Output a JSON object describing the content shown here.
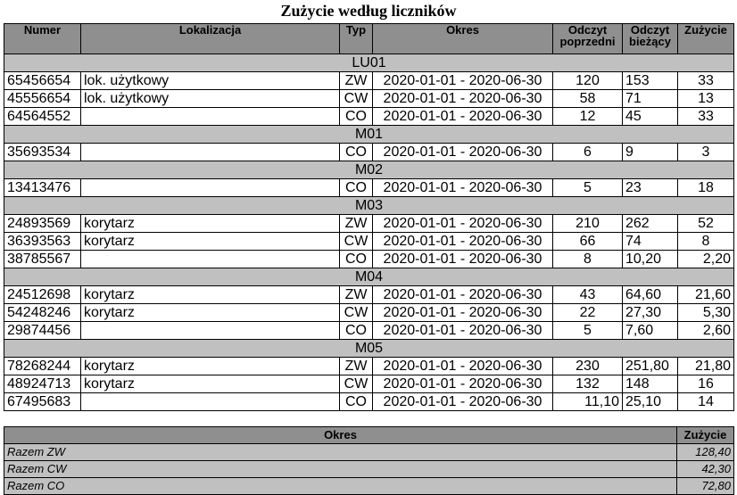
{
  "title": "Zużycie według liczników",
  "headers": {
    "numer": "Numer",
    "lokalizacja": "Lokalizacja",
    "typ": "Typ",
    "okres": "Okres",
    "odczyt_poprzedni": "Odczyt poprzedni",
    "odczyt_biezacy": "Odczyt bieżący",
    "zuzycie": "Zużycie"
  },
  "groups": [
    {
      "name": "LU01",
      "rows": [
        {
          "numer": "65456654",
          "lokalizacja": "lok. użytkowy",
          "typ": "ZW",
          "okres": "2020-01-01 - 2020-06-30",
          "prev": "120",
          "curr": "153",
          "usage": "33"
        },
        {
          "numer": "45556654",
          "lokalizacja": "lok. użytkowy",
          "typ": "CW",
          "okres": "2020-01-01 - 2020-06-30",
          "prev": "58",
          "curr": "71",
          "usage": "13"
        },
        {
          "numer": "64564552",
          "lokalizacja": "",
          "typ": "CO",
          "okres": "2020-01-01 - 2020-06-30",
          "prev": "12",
          "curr": "45",
          "usage": "33"
        }
      ]
    },
    {
      "name": "M01",
      "rows": [
        {
          "numer": "35693534",
          "lokalizacja": "",
          "typ": "CO",
          "okres": "2020-01-01 - 2020-06-30",
          "prev": "6",
          "curr": "9",
          "usage": "3"
        }
      ]
    },
    {
      "name": "M02",
      "rows": [
        {
          "numer": "13413476",
          "lokalizacja": "",
          "typ": "CO",
          "okres": "2020-01-01 - 2020-06-30",
          "prev": "5",
          "curr": "23",
          "usage": "18"
        }
      ]
    },
    {
      "name": "M03",
      "rows": [
        {
          "numer": "24893569",
          "lokalizacja": "korytarz",
          "typ": "ZW",
          "okres": "2020-01-01 - 2020-06-30",
          "prev": "210",
          "curr": "262",
          "usage": "52"
        },
        {
          "numer": "36393563",
          "lokalizacja": "korytarz",
          "typ": "CW",
          "okres": "2020-01-01 - 2020-06-30",
          "prev": "66",
          "curr": "74",
          "usage": "8"
        },
        {
          "numer": "38785567",
          "lokalizacja": "",
          "typ": "CO",
          "okres": "2020-01-01 - 2020-06-30",
          "prev": "8",
          "curr": "10,20",
          "usage": "2,20"
        }
      ]
    },
    {
      "name": "M04",
      "rows": [
        {
          "numer": "24512698",
          "lokalizacja": "korytarz",
          "typ": "ZW",
          "okres": "2020-01-01 - 2020-06-30",
          "prev": "43",
          "curr": "64,60",
          "usage": "21,60"
        },
        {
          "numer": "54248246",
          "lokalizacja": "korytarz",
          "typ": "CW",
          "okres": "2020-01-01 - 2020-06-30",
          "prev": "22",
          "curr": "27,30",
          "usage": "5,30"
        },
        {
          "numer": "29874456",
          "lokalizacja": "",
          "typ": "CO",
          "okres": "2020-01-01 - 2020-06-30",
          "prev": "5",
          "curr": "7,60",
          "usage": "2,60"
        }
      ]
    },
    {
      "name": "M05",
      "rows": [
        {
          "numer": "78268244",
          "lokalizacja": "korytarz",
          "typ": "ZW",
          "okres": "2020-01-01 - 2020-06-30",
          "prev": "230",
          "curr": "251,80",
          "usage": "21,80"
        },
        {
          "numer": "48924713",
          "lokalizacja": "korytarz",
          "typ": "CW",
          "okres": "2020-01-01 - 2020-06-30",
          "prev": "132",
          "curr": "148",
          "usage": "16"
        },
        {
          "numer": "67495683",
          "lokalizacja": "",
          "typ": "CO",
          "okres": "2020-01-01 - 2020-06-30",
          "prev": "11,10",
          "curr": "25,10",
          "usage": "14"
        }
      ]
    }
  ],
  "summary": {
    "header_okres": "Okres",
    "header_zuzycie": "Zużycie",
    "rows": [
      {
        "label": "Razem ZW",
        "value": "128,40"
      },
      {
        "label": "Razem CW",
        "value": "42,30"
      },
      {
        "label": "Razem CO",
        "value": "72,80"
      }
    ]
  }
}
